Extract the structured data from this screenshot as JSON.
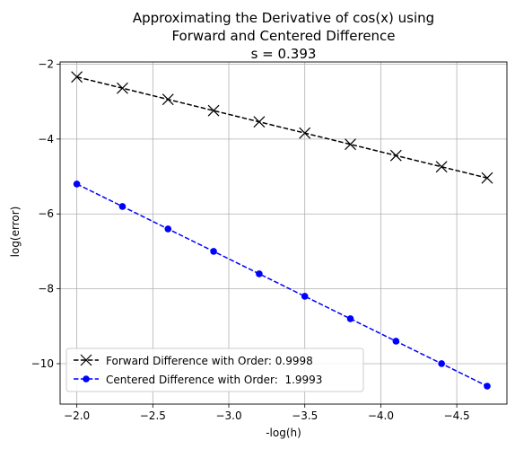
{
  "chart_data": {
    "type": "line",
    "title_lines": [
      "Approximating the Derivative of cos(x) using",
      "Forward and Centered Difference",
      "s = 0.393"
    ],
    "xlabel": "-log(h)",
    "ylabel": "log(error)",
    "xlim": [
      -1.89,
      -4.83
    ],
    "ylim": [
      -11.08,
      -1.94
    ],
    "x_ticks": [
      -2.0,
      -2.5,
      -3.0,
      -3.5,
      -4.0,
      -4.5
    ],
    "x_tick_labels": [
      "−2.0",
      "−2.5",
      "−3.0",
      "−3.5",
      "−4.0",
      "−4.5"
    ],
    "y_ticks": [
      -2,
      -4,
      -6,
      -8,
      -10
    ],
    "y_tick_labels": [
      "−2",
      "−4",
      "−6",
      "−8",
      "−10"
    ],
    "grid": true,
    "legend_position": "lower-left",
    "series": [
      {
        "name": "Forward Difference with Order: 0.9998",
        "color": "#000000",
        "marker": "x",
        "linestyle": "dashed",
        "x": [
          -2.0,
          -2.3,
          -2.6,
          -2.9,
          -3.2,
          -3.5,
          -3.8,
          -4.1,
          -4.4,
          -4.7
        ],
        "values": [
          -2.34,
          -2.64,
          -2.94,
          -3.24,
          -3.54,
          -3.84,
          -4.14,
          -4.44,
          -4.74,
          -5.04
        ]
      },
      {
        "name": "Centered Difference with Order:  1.9993",
        "color": "#0000ff",
        "marker": "o",
        "linestyle": "dashed",
        "x": [
          -2.0,
          -2.3,
          -2.6,
          -2.9,
          -3.2,
          -3.5,
          -3.8,
          -4.1,
          -4.4,
          -4.7
        ],
        "values": [
          -5.2,
          -5.8,
          -6.4,
          -7.0,
          -7.6,
          -8.2,
          -8.8,
          -9.4,
          -10.0,
          -10.6
        ]
      }
    ]
  }
}
